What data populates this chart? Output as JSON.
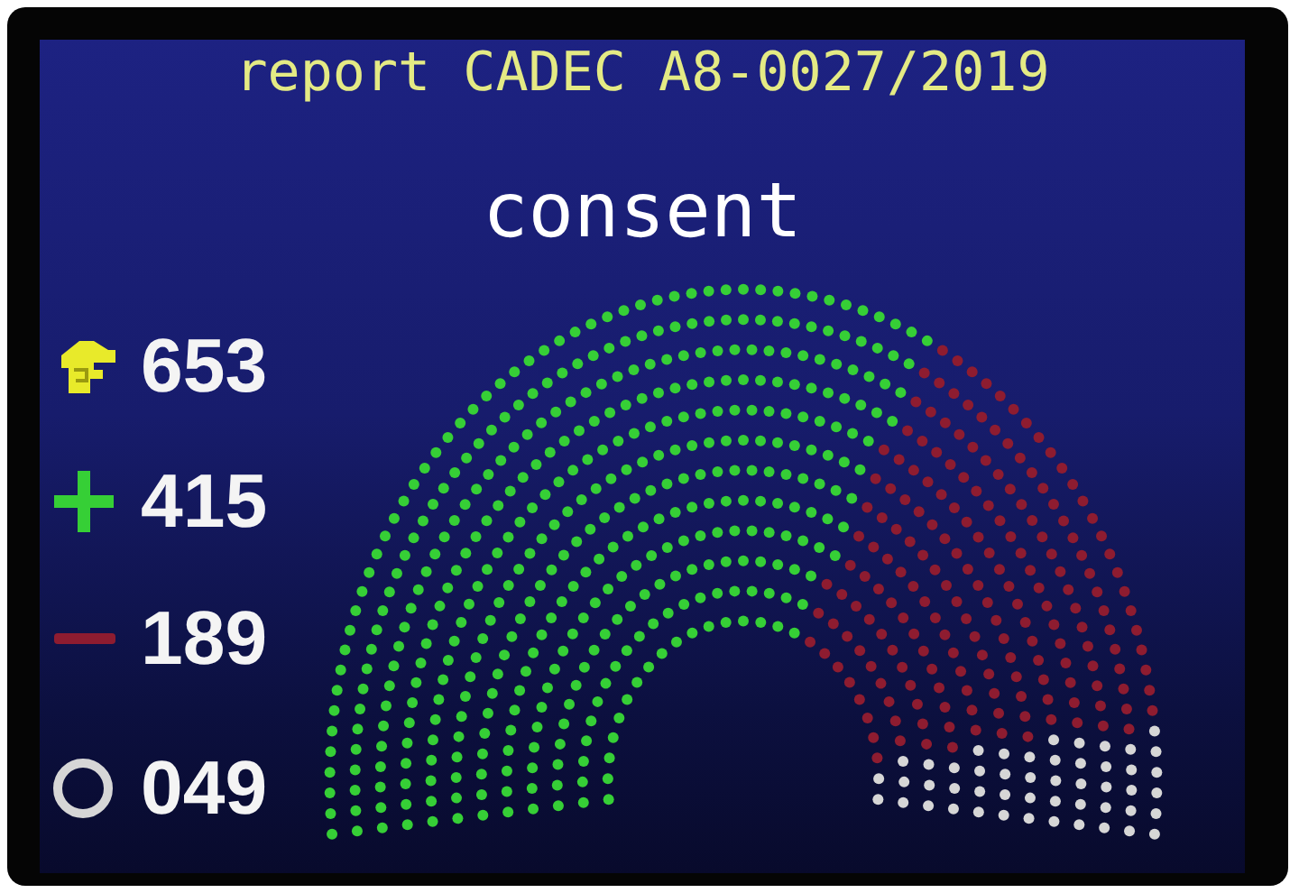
{
  "chart_data": {
    "type": "other",
    "title": "report CADEC A8-0027/2019",
    "subtitle": "consent",
    "categories": [
      null,
      null,
      null
    ],
    "values": [
      415,
      189,
      49
    ],
    "value_labels": [
      "415",
      "189",
      "049"
    ],
    "colors": [
      "#36cf36",
      "#8e1c30",
      "#d6d6d6"
    ],
    "totals": [
      "653"
    ]
  }
}
